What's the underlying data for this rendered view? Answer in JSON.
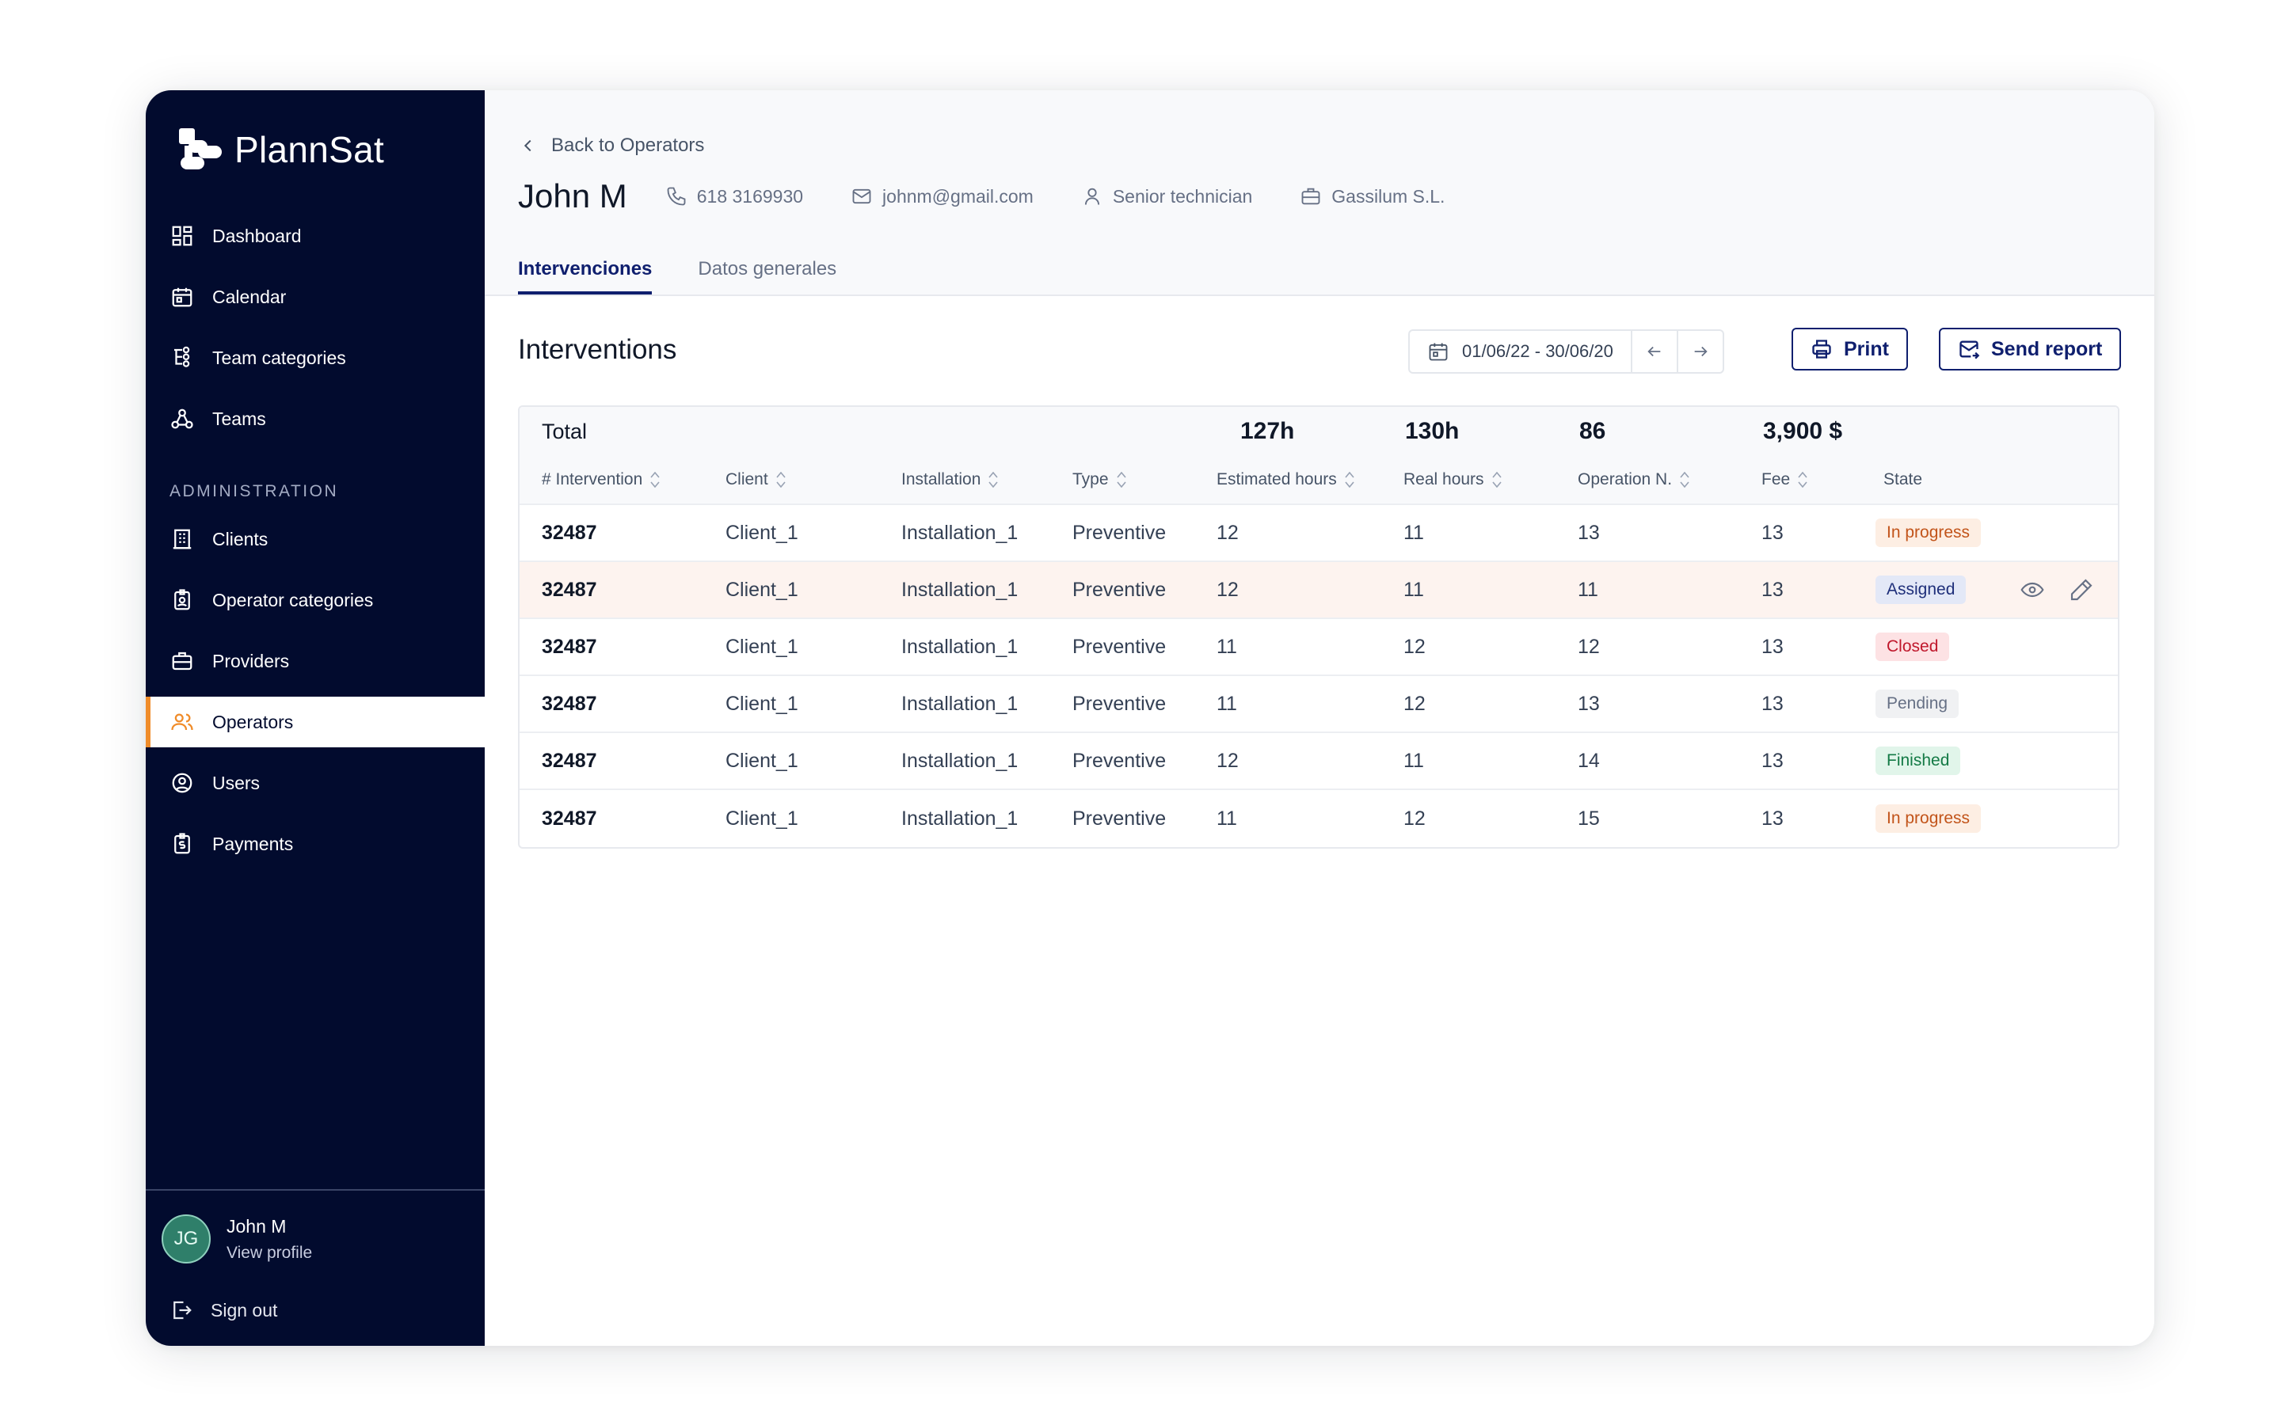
{
  "brand": {
    "name": "PlannSat"
  },
  "sidebar": {
    "items": [
      {
        "label": "Dashboard",
        "icon": "dashboard-icon"
      },
      {
        "label": "Calendar",
        "icon": "calendar-icon"
      },
      {
        "label": "Team categories",
        "icon": "team-categories-icon"
      },
      {
        "label": "Teams",
        "icon": "teams-icon"
      }
    ],
    "section_label": "ADMINISTRATION",
    "admin_items": [
      {
        "label": "Clients",
        "icon": "building-icon"
      },
      {
        "label": "Operator categories",
        "icon": "badge-icon"
      },
      {
        "label": "Providers",
        "icon": "briefcase-icon"
      },
      {
        "label": "Operators",
        "icon": "operators-icon",
        "active": true
      },
      {
        "label": "Users",
        "icon": "user-circle-icon"
      },
      {
        "label": "Payments",
        "icon": "payments-icon"
      }
    ],
    "profile": {
      "initials": "JG",
      "name": "John M",
      "link": "View profile"
    },
    "signout": "Sign out"
  },
  "header": {
    "back": "Back to Operators",
    "name": "John M",
    "phone": "618 3169930",
    "email": "johnm@gmail.com",
    "role": "Senior technician",
    "company": "Gassilum S.L.",
    "tabs": [
      {
        "label": "Intervenciones",
        "active": true
      },
      {
        "label": "Datos generales",
        "active": false
      }
    ]
  },
  "section": {
    "title": "Interventions",
    "date_range": "01/06/22 - 30/06/20",
    "print_label": "Print",
    "report_label": "Send report"
  },
  "table": {
    "totals": {
      "label": "Total",
      "estimated": "127h",
      "real": "130h",
      "operations": "86",
      "fee": "3,900 $"
    },
    "columns": [
      "# Intervention",
      "Client",
      "Installation",
      "Type",
      "Estimated hours",
      "Real hours",
      "Operation N.",
      "Fee",
      "State"
    ],
    "rows": [
      {
        "id": "32487",
        "client": "Client_1",
        "installation": "Installation_1",
        "type": "Preventive",
        "est": "12",
        "real": "11",
        "ops": "13",
        "fee": "13",
        "state": "In progress"
      },
      {
        "id": "32487",
        "client": "Client_1",
        "installation": "Installation_1",
        "type": "Preventive",
        "est": "12",
        "real": "11",
        "ops": "11",
        "fee": "13",
        "state": "Assigned"
      },
      {
        "id": "32487",
        "client": "Client_1",
        "installation": "Installation_1",
        "type": "Preventive",
        "est": "11",
        "real": "12",
        "ops": "12",
        "fee": "13",
        "state": "Closed"
      },
      {
        "id": "32487",
        "client": "Client_1",
        "installation": "Installation_1",
        "type": "Preventive",
        "est": "11",
        "real": "12",
        "ops": "13",
        "fee": "13",
        "state": "Pending"
      },
      {
        "id": "32487",
        "client": "Client_1",
        "installation": "Installation_1",
        "type": "Preventive",
        "est": "12",
        "real": "11",
        "ops": "14",
        "fee": "13",
        "state": "Finished"
      },
      {
        "id": "32487",
        "client": "Client_1",
        "installation": "Installation_1",
        "type": "Preventive",
        "est": "11",
        "real": "12",
        "ops": "15",
        "fee": "13",
        "state": "In progress"
      }
    ],
    "state_colors": {
      "In progress": {
        "bg": "#fdeee3",
        "fg": "#c2541a"
      },
      "Assigned": {
        "bg": "#e3e8f7",
        "fg": "#1f2f7a"
      },
      "Closed": {
        "bg": "#fde2e4",
        "fg": "#c0182c"
      },
      "Pending": {
        "bg": "#f0f1f3",
        "fg": "#667085"
      },
      "Finished": {
        "bg": "#e1f5ea",
        "fg": "#137a45"
      }
    }
  },
  "colors": {
    "sidebar_bg": "#020b2e",
    "accent": "#f08c2a",
    "primary": "#0f1f6e",
    "highlight_row": "#fdf3ef"
  }
}
